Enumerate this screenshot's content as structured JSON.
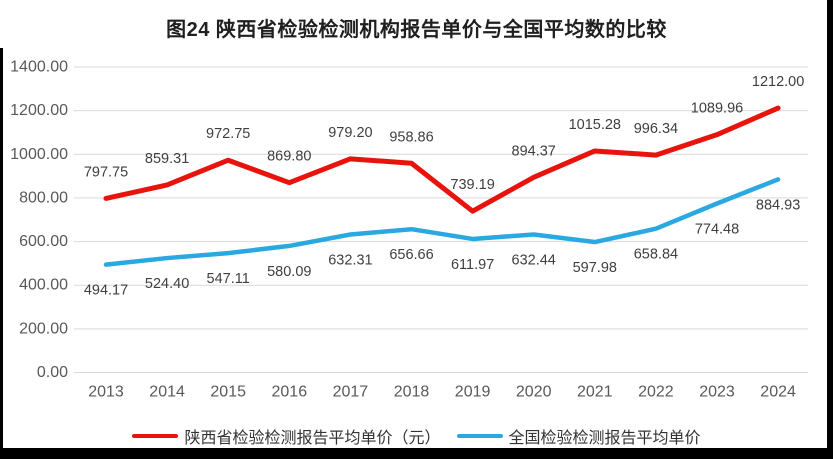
{
  "title": "图24 陕西省检验检测机构报告单价与全国平均数的比较",
  "chart_data": {
    "type": "line",
    "title": "图24 陕西省检验检测机构报告单价与全国平均数的比较",
    "categories": [
      "2013",
      "2014",
      "2015",
      "2016",
      "2017",
      "2018",
      "2019",
      "2020",
      "2021",
      "2022",
      "2023",
      "2024"
    ],
    "series": [
      {
        "name": "陕西省检验检测报告平均单价（元）",
        "color": "#e8130c",
        "label_position": "above",
        "values": [
          797.75,
          859.31,
          972.75,
          869.8,
          979.2,
          958.86,
          739.19,
          894.37,
          1015.28,
          996.34,
          1089.96,
          1212.0
        ]
      },
      {
        "name": "全国检验检测报告平均单价",
        "color": "#2aa9e0",
        "label_position": "below",
        "values": [
          494.17,
          524.4,
          547.11,
          580.09,
          632.31,
          656.66,
          611.97,
          632.44,
          597.98,
          658.84,
          774.48,
          884.93
        ]
      }
    ],
    "ylim": [
      0,
      1400
    ],
    "ytick_step": 200,
    "ytick_labels": [
      "0.00",
      "200.00",
      "400.00",
      "600.00",
      "800.00",
      "1000.00",
      "1200.00",
      "1400.00"
    ],
    "value_format_decimals": 2,
    "grid": true,
    "legend_position": "bottom"
  },
  "styles": {
    "grid_color": "#d9d9d9",
    "axis_label_color": "#595959",
    "data_label_color": "#3f3f3f",
    "title_color": "#1f1f1f",
    "frame_color": "#000000"
  }
}
